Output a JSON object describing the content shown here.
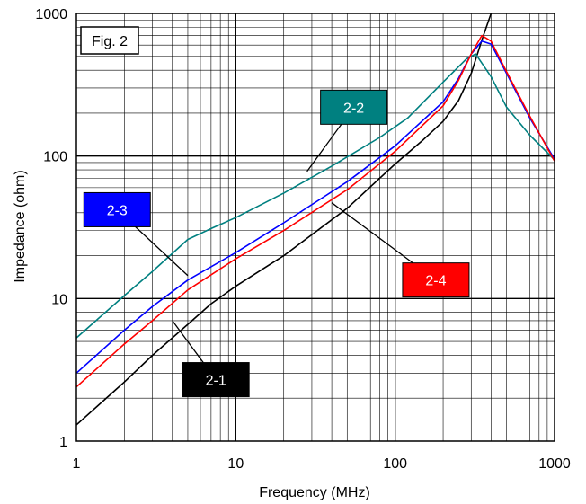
{
  "chart_data": {
    "type": "line",
    "figure_label": "Fig. 2",
    "xlabel": "Frequency (MHz)",
    "ylabel": "Impedance (ohm)",
    "xscale": "log",
    "yscale": "log",
    "xlim": [
      1,
      1000
    ],
    "ylim": [
      1,
      1000
    ],
    "x_ticks": [
      "1",
      "10",
      "100",
      "1000"
    ],
    "y_ticks": [
      "1",
      "10",
      "100",
      "1000"
    ],
    "grid": true,
    "series": [
      {
        "name": "2-1",
        "color": "#000000",
        "label_bg": "#000000",
        "label_pos": [
          7.5,
          2.7
        ],
        "leader_to": [
          4.0,
          7.0
        ],
        "points": [
          [
            1,
            1.3
          ],
          [
            2,
            2.6
          ],
          [
            3,
            4.0
          ],
          [
            5,
            6.6
          ],
          [
            7,
            9.2
          ],
          [
            10,
            12.2
          ],
          [
            20,
            20
          ],
          [
            50,
            43
          ],
          [
            100,
            88
          ],
          [
            150,
            130
          ],
          [
            200,
            175
          ],
          [
            250,
            245
          ],
          [
            300,
            380
          ],
          [
            350,
            650
          ],
          [
            400,
            1000
          ],
          [
            420,
            1300
          ]
        ]
      },
      {
        "name": "2-2",
        "color": "#008080",
        "label_bg": "#008080",
        "label_pos": [
          55,
          220
        ],
        "leader_to": [
          28,
          78
        ],
        "points": [
          [
            1,
            5.3
          ],
          [
            2,
            10.5
          ],
          [
            3,
            15.5
          ],
          [
            5,
            26
          ],
          [
            7,
            31
          ],
          [
            10,
            37
          ],
          [
            20,
            55
          ],
          [
            40,
            85
          ],
          [
            80,
            135
          ],
          [
            120,
            185
          ],
          [
            200,
            330
          ],
          [
            280,
            480
          ],
          [
            320,
            520
          ],
          [
            400,
            360
          ],
          [
            500,
            220
          ],
          [
            700,
            140
          ],
          [
            1000,
            94
          ]
        ]
      },
      {
        "name": "2-3",
        "color": "#0000ff",
        "label_bg": "#0000ff",
        "label_pos": [
          1.8,
          42
        ],
        "leader_to": [
          5.0,
          14.5
        ],
        "points": [
          [
            1,
            3.0
          ],
          [
            2,
            6.0
          ],
          [
            3,
            8.8
          ],
          [
            5,
            13.5
          ],
          [
            10,
            21
          ],
          [
            20,
            34
          ],
          [
            50,
            66
          ],
          [
            100,
            118
          ],
          [
            200,
            240
          ],
          [
            250,
            350
          ],
          [
            300,
            520
          ],
          [
            350,
            640
          ],
          [
            400,
            610
          ],
          [
            500,
            380
          ],
          [
            700,
            185
          ],
          [
            1000,
            95
          ]
        ]
      },
      {
        "name": "2-4",
        "color": "#ff0000",
        "label_bg": "#ff0000",
        "label_pos": [
          180,
          13.5
        ],
        "leader_to": [
          40,
          47
        ],
        "points": [
          [
            1,
            2.4
          ],
          [
            2,
            4.8
          ],
          [
            3,
            7.0
          ],
          [
            5,
            11.5
          ],
          [
            10,
            19
          ],
          [
            20,
            30
          ],
          [
            50,
            58
          ],
          [
            100,
            108
          ],
          [
            200,
            225
          ],
          [
            250,
            340
          ],
          [
            300,
            520
          ],
          [
            350,
            700
          ],
          [
            400,
            640
          ],
          [
            500,
            390
          ],
          [
            700,
            190
          ],
          [
            1000,
            92
          ]
        ]
      }
    ]
  }
}
